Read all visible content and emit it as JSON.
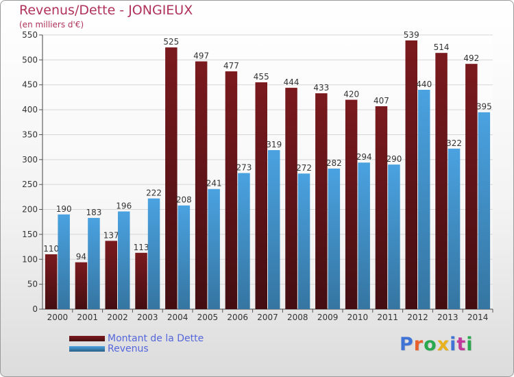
{
  "header": {
    "title": "Revenus/Dette - JONGIEUX",
    "subtitle": "(en milliers d'€)"
  },
  "legend": [
    {
      "label": "Montant de la Dette",
      "color": "#7a1a1e"
    },
    {
      "label": "Revenus",
      "color": "#4aa2e0"
    }
  ],
  "logo": {
    "text": "Proxiti",
    "letter_colors": [
      "#3f73d6",
      "#e8612c",
      "#2aa84f",
      "#e8b21c",
      "#3f73d6",
      "#c0399a",
      "#2aa84f"
    ]
  },
  "chart_data": {
    "type": "bar",
    "categories": [
      "2000",
      "2001",
      "2002",
      "2003",
      "2004",
      "2005",
      "2006",
      "2007",
      "2008",
      "2009",
      "2010",
      "2011",
      "2012",
      "2013",
      "2014"
    ],
    "series": [
      {
        "name": "Montant de la Dette",
        "color": "#7a1a1e",
        "values": [
          110,
          94,
          137,
          113,
          525,
          497,
          477,
          455,
          444,
          433,
          420,
          407,
          539,
          514,
          492
        ]
      },
      {
        "name": "Revenus",
        "color": "#4aa2e0",
        "values": [
          190,
          183,
          196,
          222,
          208,
          241,
          273,
          319,
          272,
          282,
          294,
          290,
          440,
          322,
          395
        ]
      }
    ],
    "yticks": [
      0,
      50,
      100,
      150,
      200,
      250,
      300,
      350,
      400,
      450,
      500,
      550
    ],
    "ylim": [
      0,
      550
    ],
    "grid": true
  }
}
